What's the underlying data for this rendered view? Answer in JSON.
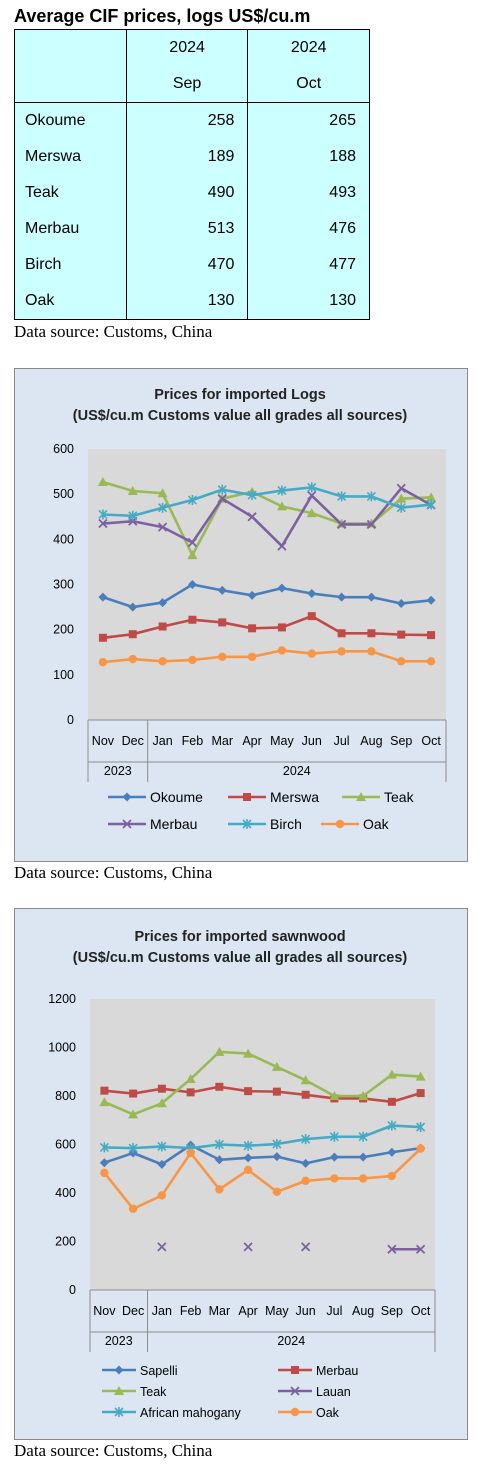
{
  "table": {
    "title": "Average CIF prices, logs US$/cu.m",
    "col1_year": "2024",
    "col1_month": "Sep",
    "col2_year": "2024",
    "col2_month": "Oct",
    "rows": [
      {
        "name": "Okoume",
        "sep": "258",
        "oct": "265"
      },
      {
        "name": "Merswa",
        "sep": "189",
        "oct": "188"
      },
      {
        "name": "Teak",
        "sep": "490",
        "oct": "493"
      },
      {
        "name": "Merbau",
        "sep": "513",
        "oct": "476"
      },
      {
        "name": "Birch",
        "sep": "470",
        "oct": "477"
      },
      {
        "name": "Oak",
        "sep": "130",
        "oct": "130"
      }
    ],
    "source": "Data source: Customs, China"
  },
  "chart_data": [
    {
      "type": "line",
      "title": "Prices for imported Logs",
      "subtitle": "(US$/cu.m Customs value all grades all sources)",
      "categories": [
        "Nov",
        "Dec",
        "Jan",
        "Feb",
        "Mar",
        "Apr",
        "May",
        "Jun",
        "Jul",
        "Aug",
        "Sep",
        "Oct"
      ],
      "category_groups": [
        {
          "label": "2023",
          "span": 2
        },
        {
          "label": "2024",
          "span": 10
        }
      ],
      "ylim": [
        0,
        600
      ],
      "yticks": [
        0,
        100,
        200,
        300,
        400,
        500,
        600
      ],
      "grid": false,
      "legend": "bottom",
      "series": [
        {
          "name": "Okoume",
          "color": "#4a7ebb",
          "marker": "diamond",
          "values": [
            272,
            250,
            260,
            300,
            287,
            276,
            292,
            280,
            272,
            272,
            258,
            265
          ]
        },
        {
          "name": "Merswa",
          "color": "#be4b48",
          "marker": "square",
          "values": [
            182,
            190,
            207,
            222,
            216,
            203,
            205,
            230,
            192,
            192,
            189,
            188
          ]
        },
        {
          "name": "Teak",
          "color": "#98b954",
          "marker": "triangle",
          "values": [
            527,
            507,
            502,
            365,
            490,
            505,
            473,
            458,
            435,
            435,
            490,
            493
          ]
        },
        {
          "name": "Merbau",
          "color": "#7d60a0",
          "marker": "x",
          "values": [
            435,
            440,
            427,
            393,
            490,
            450,
            385,
            497,
            433,
            433,
            513,
            476
          ]
        },
        {
          "name": "Birch",
          "color": "#46aac4",
          "marker": "star",
          "values": [
            455,
            452,
            470,
            487,
            510,
            498,
            508,
            515,
            495,
            495,
            470,
            477
          ]
        },
        {
          "name": "Oak",
          "color": "#f79646",
          "marker": "circle",
          "values": [
            128,
            135,
            130,
            133,
            140,
            140,
            154,
            147,
            152,
            152,
            130,
            130
          ]
        }
      ],
      "source": "Data source: Customs, China"
    },
    {
      "type": "line",
      "title": "Prices for imported sawnwood",
      "subtitle": "(US$/cu.m Customs value all grades all sources)",
      "categories": [
        "Nov",
        "Dec",
        "Jan",
        "Feb",
        "Mar",
        "Apr",
        "May",
        "Jun",
        "Jul",
        "Aug",
        "Sep",
        "Oct"
      ],
      "category_groups": [
        {
          "label": "2023",
          "span": 2
        },
        {
          "label": "2024",
          "span": 10
        }
      ],
      "ylim": [
        0,
        1200
      ],
      "yticks": [
        0,
        200,
        400,
        600,
        800,
        1000,
        1200
      ],
      "grid": false,
      "legend": "bottom",
      "series": [
        {
          "name": "Sapelli",
          "color": "#4a7ebb",
          "marker": "diamond",
          "values": [
            525,
            565,
            518,
            598,
            537,
            545,
            550,
            522,
            548,
            548,
            568,
            585
          ]
        },
        {
          "name": "Merbau",
          "color": "#be4b48",
          "marker": "square",
          "values": [
            822,
            810,
            830,
            815,
            838,
            820,
            818,
            805,
            790,
            790,
            776,
            812
          ]
        },
        {
          "name": "Teak",
          "color": "#98b954",
          "marker": "triangle",
          "values": [
            775,
            724,
            770,
            870,
            982,
            975,
            920,
            865,
            800,
            800,
            888,
            880
          ]
        },
        {
          "name": "Lauan",
          "color": "#7d60a0",
          "marker": "x",
          "values": [
            null,
            null,
            178,
            null,
            null,
            178,
            null,
            178,
            null,
            null,
            168,
            168
          ]
        },
        {
          "name": "African mahogany",
          "color": "#46aac4",
          "marker": "star",
          "values": [
            588,
            585,
            592,
            585,
            600,
            595,
            602,
            622,
            632,
            632,
            678,
            672
          ]
        },
        {
          "name": "Oak",
          "color": "#f79646",
          "marker": "circle",
          "values": [
            483,
            335,
            390,
            565,
            415,
            495,
            405,
            450,
            460,
            460,
            470,
            583
          ]
        }
      ],
      "source": "Data source: Customs, China"
    }
  ]
}
